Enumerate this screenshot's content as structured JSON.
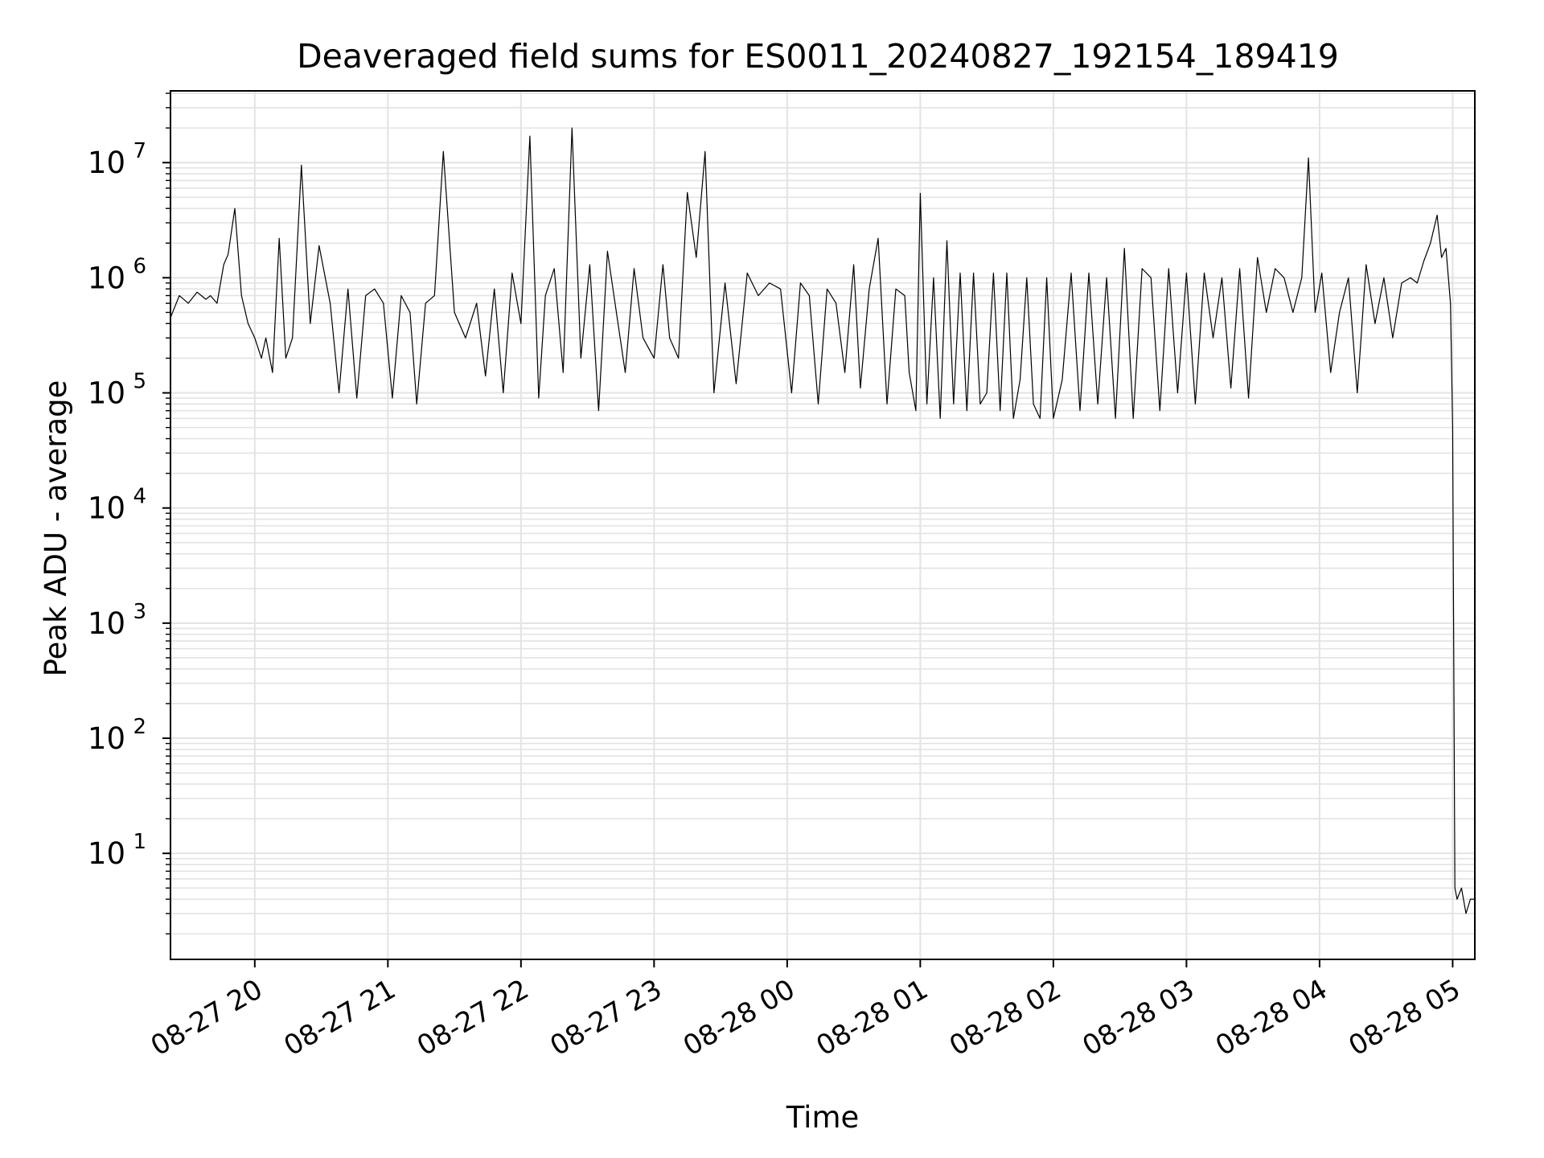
{
  "chart_data": {
    "type": "line",
    "title": "Deaveraged field sums for ES0011_20240827_192154_189419",
    "xlabel": "Time",
    "ylabel": "Peak ADU - average",
    "y_scale": "log",
    "ylim": [
      1.2,
      42000000
    ],
    "xlim": [
      "2024-08-27 19:22",
      "2024-08-28 05:10"
    ],
    "grid": true,
    "legend": "none",
    "x_ticks": [
      "08-27 20",
      "08-27 21",
      "08-27 22",
      "08-27 23",
      "08-28 00",
      "08-28 01",
      "08-28 02",
      "08-28 03",
      "08-28 04",
      "08-28 05"
    ],
    "y_ticks": [
      {
        "base": "10",
        "exp": "1",
        "value": 10
      },
      {
        "base": "10",
        "exp": "2",
        "value": 100
      },
      {
        "base": "10",
        "exp": "3",
        "value": 1000
      },
      {
        "base": "10",
        "exp": "4",
        "value": 10000
      },
      {
        "base": "10",
        "exp": "5",
        "value": 100000
      },
      {
        "base": "10",
        "exp": "6",
        "value": 1000000
      },
      {
        "base": "10",
        "exp": "7",
        "value": 10000000
      }
    ],
    "line_color": "#000000",
    "grid_color": "#e3e3e3",
    "series": [
      {
        "x": [
          "2024-08-27 19:22",
          "2024-08-27 19:26",
          "2024-08-27 19:30",
          "2024-08-27 19:34",
          "2024-08-27 19:38",
          "2024-08-27 19:40",
          "2024-08-27 19:43",
          "2024-08-27 19:46",
          "2024-08-27 19:48",
          "2024-08-27 19:51",
          "2024-08-27 19:54",
          "2024-08-27 19:57",
          "2024-08-27 20:00",
          "2024-08-27 20:03",
          "2024-08-27 20:05",
          "2024-08-27 20:08",
          "2024-08-27 20:11",
          "2024-08-27 20:14",
          "2024-08-27 20:17",
          "2024-08-27 20:21",
          "2024-08-27 20:25",
          "2024-08-27 20:29",
          "2024-08-27 20:34",
          "2024-08-27 20:38",
          "2024-08-27 20:42",
          "2024-08-27 20:46",
          "2024-08-27 20:50",
          "2024-08-27 20:54",
          "2024-08-27 20:58",
          "2024-08-27 21:02",
          "2024-08-27 21:06",
          "2024-08-27 21:10",
          "2024-08-27 21:13",
          "2024-08-27 21:17",
          "2024-08-27 21:21",
          "2024-08-27 21:25",
          "2024-08-27 21:30",
          "2024-08-27 21:35",
          "2024-08-27 21:40",
          "2024-08-27 21:44",
          "2024-08-27 21:48",
          "2024-08-27 21:52",
          "2024-08-27 21:56",
          "2024-08-27 22:00",
          "2024-08-27 22:04",
          "2024-08-27 22:08",
          "2024-08-27 22:11",
          "2024-08-27 22:15",
          "2024-08-27 22:19",
          "2024-08-27 22:23",
          "2024-08-27 22:27",
          "2024-08-27 22:31",
          "2024-08-27 22:35",
          "2024-08-27 22:39",
          "2024-08-27 22:43",
          "2024-08-27 22:47",
          "2024-08-27 22:51",
          "2024-08-27 22:55",
          "2024-08-27 23:00",
          "2024-08-27 23:04",
          "2024-08-27 23:07",
          "2024-08-27 23:11",
          "2024-08-27 23:15",
          "2024-08-27 23:19",
          "2024-08-27 23:23",
          "2024-08-27 23:27",
          "2024-08-27 23:32",
          "2024-08-27 23:37",
          "2024-08-27 23:42",
          "2024-08-27 23:47",
          "2024-08-27 23:52",
          "2024-08-27 23:57",
          "2024-08-28 00:02",
          "2024-08-28 00:06",
          "2024-08-28 00:10",
          "2024-08-28 00:14",
          "2024-08-28 00:18",
          "2024-08-28 00:22",
          "2024-08-28 00:26",
          "2024-08-28 00:30",
          "2024-08-28 00:33",
          "2024-08-28 00:37",
          "2024-08-28 00:41",
          "2024-08-28 00:45",
          "2024-08-28 00:49",
          "2024-08-28 00:53",
          "2024-08-28 00:55",
          "2024-08-28 00:58",
          "2024-08-28 01:00",
          "2024-08-28 01:03",
          "2024-08-28 01:06",
          "2024-08-28 01:09",
          "2024-08-28 01:12",
          "2024-08-28 01:15",
          "2024-08-28 01:18",
          "2024-08-28 01:21",
          "2024-08-28 01:24",
          "2024-08-28 01:27",
          "2024-08-28 01:30",
          "2024-08-28 01:33",
          "2024-08-28 01:36",
          "2024-08-28 01:39",
          "2024-08-28 01:42",
          "2024-08-28 01:45",
          "2024-08-28 01:48",
          "2024-08-28 01:51",
          "2024-08-28 01:54",
          "2024-08-28 01:57",
          "2024-08-28 02:00",
          "2024-08-28 02:04",
          "2024-08-28 02:08",
          "2024-08-28 02:12",
          "2024-08-28 02:16",
          "2024-08-28 02:20",
          "2024-08-28 02:24",
          "2024-08-28 02:28",
          "2024-08-28 02:32",
          "2024-08-28 02:36",
          "2024-08-28 02:40",
          "2024-08-28 02:44",
          "2024-08-28 02:48",
          "2024-08-28 02:52",
          "2024-08-28 02:56",
          "2024-08-28 03:00",
          "2024-08-28 03:04",
          "2024-08-28 03:08",
          "2024-08-28 03:12",
          "2024-08-28 03:16",
          "2024-08-28 03:20",
          "2024-08-28 03:24",
          "2024-08-28 03:28",
          "2024-08-28 03:32",
          "2024-08-28 03:36",
          "2024-08-28 03:40",
          "2024-08-28 03:44",
          "2024-08-28 03:48",
          "2024-08-28 03:52",
          "2024-08-28 03:55",
          "2024-08-28 03:58",
          "2024-08-28 04:01",
          "2024-08-28 04:05",
          "2024-08-28 04:09",
          "2024-08-28 04:13",
          "2024-08-28 04:17",
          "2024-08-28 04:21",
          "2024-08-28 04:25",
          "2024-08-28 04:29",
          "2024-08-28 04:33",
          "2024-08-28 04:37",
          "2024-08-28 04:41",
          "2024-08-28 04:44",
          "2024-08-28 04:47",
          "2024-08-28 04:50",
          "2024-08-28 04:53",
          "2024-08-28 04:55",
          "2024-08-28 04:57",
          "2024-08-28 04:59",
          "2024-08-28 05:00",
          "2024-08-28 05:01",
          "2024-08-28 05:02",
          "2024-08-28 05:04",
          "2024-08-28 05:06",
          "2024-08-28 05:08",
          "2024-08-28 05:10"
        ],
        "y": [
          450000,
          700000,
          600000,
          750000,
          650000,
          700000,
          600000,
          1300000,
          1600000,
          4000000,
          700000,
          400000,
          300000,
          200000,
          300000,
          150000,
          2200000,
          200000,
          300000,
          9500000,
          400000,
          1900000,
          600000,
          100000,
          800000,
          90000,
          700000,
          800000,
          600000,
          90000,
          700000,
          500000,
          80000,
          600000,
          700000,
          12500000,
          500000,
          300000,
          600000,
          140000,
          800000,
          100000,
          1100000,
          400000,
          17000000,
          90000,
          700000,
          1200000,
          150000,
          20000000,
          200000,
          1300000,
          70000,
          1700000,
          500000,
          150000,
          1200000,
          300000,
          200000,
          1300000,
          300000,
          200000,
          5500000,
          1500000,
          12500000,
          100000,
          900000,
          120000,
          1100000,
          700000,
          900000,
          800000,
          100000,
          900000,
          700000,
          80000,
          800000,
          600000,
          150000,
          1300000,
          110000,
          800000,
          2200000,
          80000,
          800000,
          700000,
          150000,
          70000,
          5400000,
          80000,
          1000000,
          60000,
          2100000,
          80000,
          1100000,
          70000,
          1100000,
          80000,
          100000,
          1100000,
          70000,
          1100000,
          60000,
          130000,
          1000000,
          80000,
          60000,
          1000000,
          60000,
          130000,
          1100000,
          70000,
          1100000,
          80000,
          1000000,
          60000,
          1800000,
          60000,
          1200000,
          1000000,
          70000,
          1200000,
          100000,
          1100000,
          80000,
          1100000,
          300000,
          1000000,
          110000,
          1200000,
          90000,
          1500000,
          500000,
          1200000,
          1000000,
          500000,
          1000000,
          11000000,
          500000,
          1100000,
          150000,
          500000,
          1000000,
          100000,
          1300000,
          400000,
          1000000,
          300000,
          900000,
          1000000,
          900000,
          1400000,
          2000000,
          3500000,
          1500000,
          1800000,
          600000,
          50000,
          5,
          4,
          5,
          3,
          4,
          4
        ]
      }
    ]
  }
}
